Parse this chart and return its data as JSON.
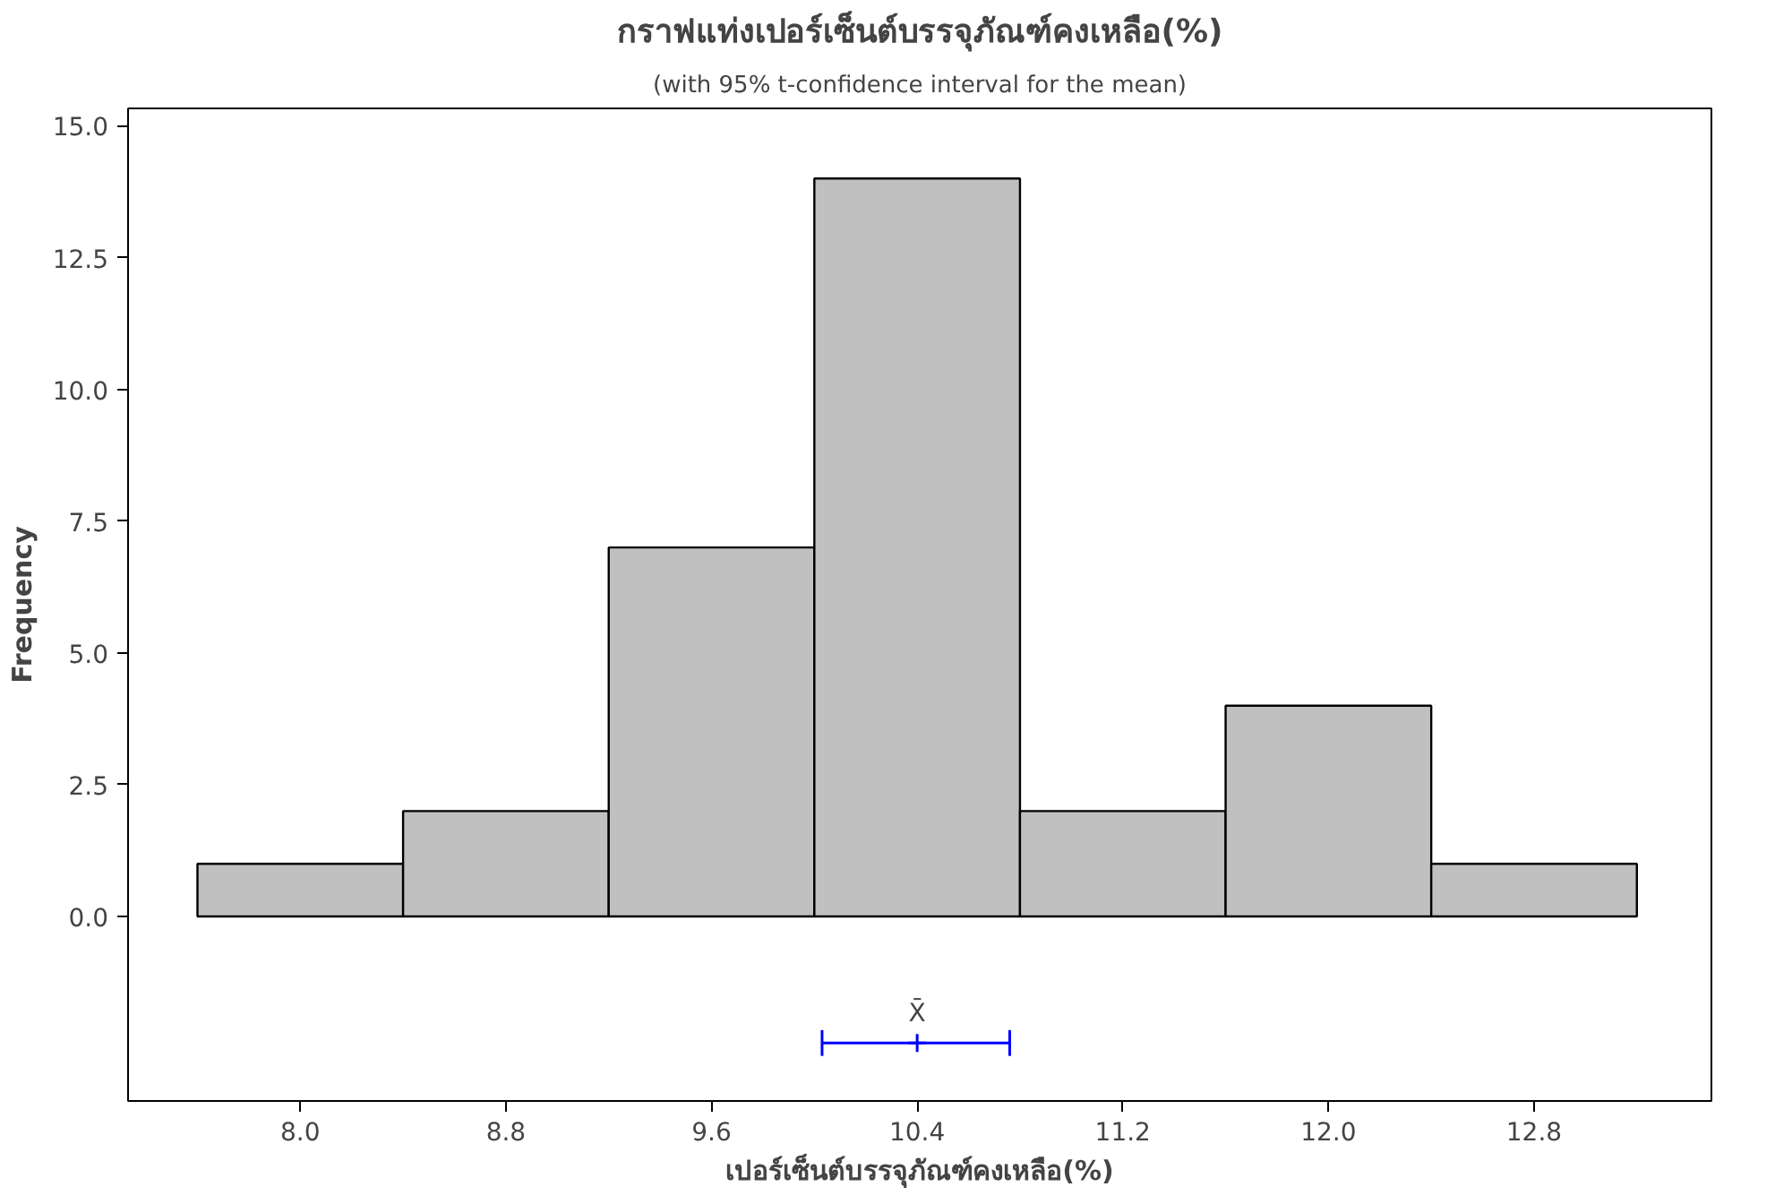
{
  "chart_data": {
    "type": "histogram",
    "title": "กราฟแท่งเปอร์เซ็นต์บรรจุภัณฑ์คงเหลือ(%)",
    "subtitle": "(with 95% t-confidence interval for the mean)",
    "xlabel": "เปอร์เซ็นต์บรรจุภัณฑ์คงเหลือ(%)",
    "ylabel": "Frequency",
    "bins": [
      7.6,
      8.4,
      9.2,
      10.0,
      10.8,
      11.6,
      12.4,
      13.2
    ],
    "values": [
      1,
      2,
      7,
      14,
      2,
      4,
      1
    ],
    "color": "#c0c0c0",
    "series": [
      {
        "type": "scatter",
        "x": [
          10.4
        ],
        "values": [
          -2.4
        ],
        "xerrors": [
          [
            10.03,
            10.76
          ]
        ],
        "color": "#0000ff",
        "marker": "cross"
      }
    ],
    "annotations": [
      {
        "text": "X̄",
        "x": 10.4,
        "y": -2.4
      }
    ],
    "xlim": [
      7.33,
      13.49
    ],
    "ylim": [
      -3.5,
      15.33
    ],
    "xticks": [
      {
        "value": 8.0,
        "label": "8.0"
      },
      {
        "value": 8.8,
        "label": "8.8"
      },
      {
        "value": 9.6,
        "label": "9.6"
      },
      {
        "value": 10.4,
        "label": "10.4"
      },
      {
        "value": 11.2,
        "label": "11.2"
      },
      {
        "value": 12.0,
        "label": "12.0"
      },
      {
        "value": 12.8,
        "label": "12.8"
      }
    ],
    "yticks": [
      {
        "value": 0,
        "label": "0.0"
      },
      {
        "value": 2.5,
        "label": "2.5"
      },
      {
        "value": 5,
        "label": "5.0"
      },
      {
        "value": 7.5,
        "label": "7.5"
      },
      {
        "value": 10,
        "label": "10.0"
      },
      {
        "value": 12.5,
        "label": "12.5"
      },
      {
        "value": 15,
        "label": "15.0"
      }
    ],
    "grid": false
  }
}
